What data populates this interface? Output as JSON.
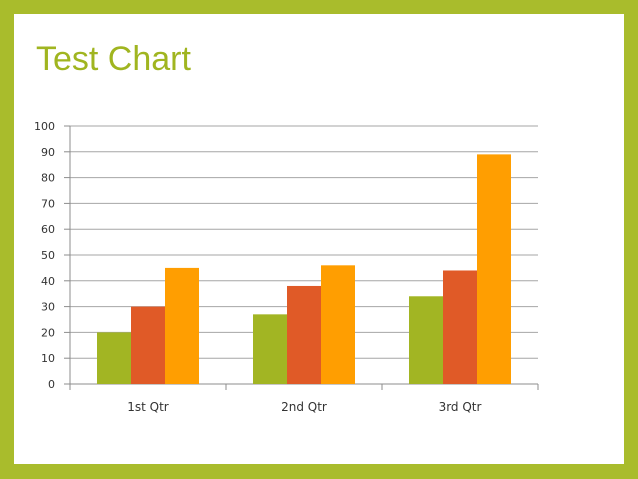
{
  "slide": {
    "title": "Test Chart",
    "colors": {
      "frame": "#a9bc2c",
      "title": "#a0b520",
      "background": "#ffffff"
    }
  },
  "chart_data": {
    "type": "bar",
    "title": "",
    "xlabel": "",
    "ylabel": "",
    "categories": [
      "1st Qtr",
      "2nd Qtr",
      "3rd Qtr"
    ],
    "series": [
      {
        "color": "#a2b523",
        "values": [
          20,
          27,
          34
        ]
      },
      {
        "color": "#e05a27",
        "values": [
          30,
          38,
          44
        ]
      },
      {
        "color": "#ff9e01",
        "values": [
          45,
          46,
          89
        ]
      }
    ],
    "ylim": [
      0,
      100
    ],
    "yticks": [
      "0",
      "10",
      "20",
      "30",
      "40",
      "50",
      "60",
      "70",
      "80",
      "90",
      "100"
    ],
    "grid": true,
    "legend": "none"
  }
}
